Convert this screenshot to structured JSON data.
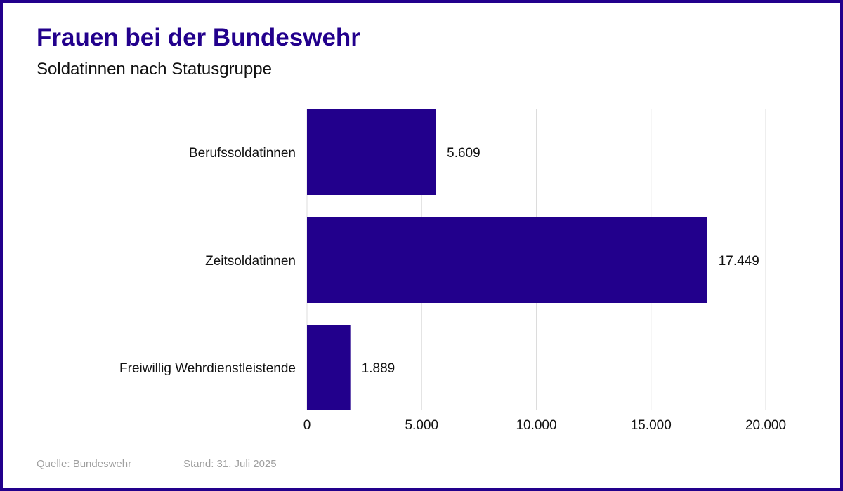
{
  "header": {
    "title": "Frauen bei der Bundeswehr",
    "subtitle": "Soldatinnen nach Statusgruppe"
  },
  "footer": {
    "source": "Quelle: Bundeswehr",
    "date": "Stand: 31. Juli 2025"
  },
  "colors": {
    "bar": "#22008c",
    "frame": "#22008c",
    "grid": "#dcdcdc",
    "text": "#111111",
    "footer": "#a0a0a0"
  },
  "chart_data": {
    "type": "bar",
    "orientation": "horizontal",
    "title": "Frauen bei der Bundeswehr",
    "subtitle": "Soldatinnen nach Statusgruppe",
    "categories": [
      "Berufssoldatinnen",
      "Zeitsoldatinnen",
      "Freiwillig Wehrdienstleistende"
    ],
    "values": [
      5609,
      17449,
      1889
    ],
    "value_labels": [
      "5.609",
      "17.449",
      "1.889"
    ],
    "xlim": [
      0,
      20000
    ],
    "xticks": [
      0,
      5000,
      10000,
      15000,
      20000
    ],
    "xtick_labels": [
      "0",
      "5.000",
      "10.000",
      "15.000",
      "20.000"
    ],
    "xlabel": "",
    "ylabel": "",
    "grid": "vertical",
    "legend": "none"
  }
}
